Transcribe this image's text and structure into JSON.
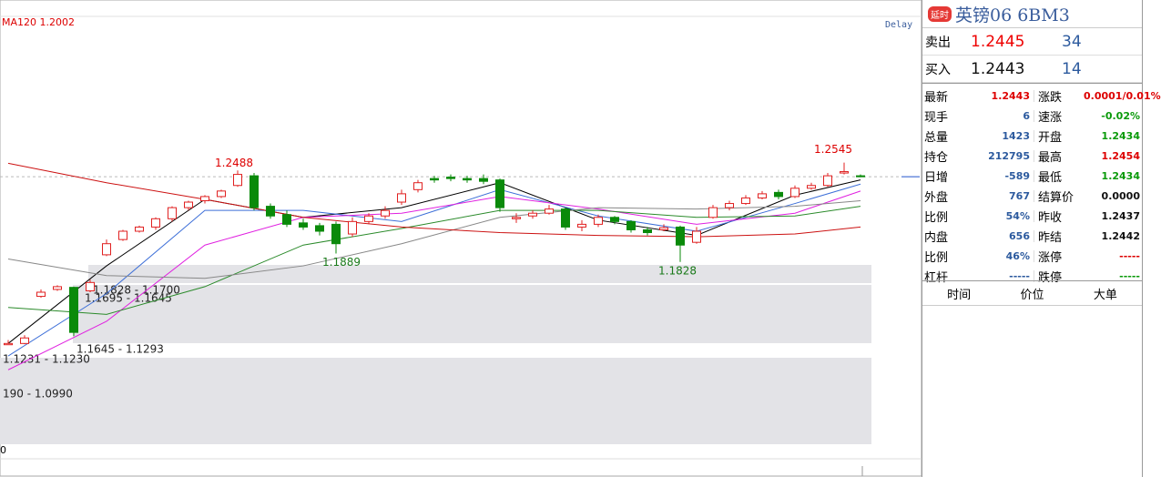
{
  "chart_data": {
    "type": "candlestick",
    "legend_text": "MA120 1.2002",
    "delay_text": "Delay",
    "corner_label": "0",
    "ylim": [
      1.05,
      1.36
    ],
    "open": [
      1.1231,
      1.124,
      1.158,
      1.163,
      1.1645,
      1.162,
      1.188,
      1.199,
      1.205,
      1.208,
      1.214,
      1.222,
      1.227,
      1.23,
      1.238,
      1.245,
      1.223,
      1.217,
      1.211,
      1.209,
      1.21,
      1.203,
      1.212,
      1.216,
      1.226,
      1.235,
      1.243,
      1.244,
      1.243,
      1.243,
      1.242,
      1.214,
      1.216,
      1.218,
      1.221,
      1.208,
      1.21,
      1.215,
      1.212,
      1.206,
      1.206,
      1.208,
      1.197,
      1.215,
      1.222,
      1.225,
      1.229,
      1.233,
      1.23,
      1.236,
      1.238,
      1.247,
      1.245
    ],
    "high": [
      1.1265,
      1.13,
      1.163,
      1.166,
      1.165,
      1.17,
      1.199,
      1.206,
      1.209,
      1.215,
      1.223,
      1.227,
      1.231,
      1.235,
      1.2488,
      1.247,
      1.225,
      1.22,
      1.214,
      1.211,
      1.212,
      1.215,
      1.218,
      1.223,
      1.235,
      1.242,
      1.245,
      1.246,
      1.245,
      1.246,
      1.243,
      1.218,
      1.22,
      1.224,
      1.222,
      1.213,
      1.217,
      1.216,
      1.213,
      1.208,
      1.21,
      1.209,
      1.208,
      1.224,
      1.227,
      1.231,
      1.234,
      1.235,
      1.238,
      1.24,
      1.247,
      1.2545,
      1.246
    ],
    "low": [
      1.123,
      1.1235,
      1.157,
      1.162,
      1.1293,
      1.161,
      1.187,
      1.198,
      1.204,
      1.206,
      1.212,
      1.22,
      1.225,
      1.229,
      1.237,
      1.22,
      1.214,
      1.208,
      1.206,
      1.202,
      1.1889,
      1.201,
      1.21,
      1.214,
      1.224,
      1.233,
      1.24,
      1.241,
      1.24,
      1.239,
      1.219,
      1.211,
      1.214,
      1.217,
      1.206,
      1.205,
      1.208,
      1.21,
      1.204,
      1.202,
      1.205,
      1.1828,
      1.196,
      1.214,
      1.22,
      1.224,
      1.228,
      1.228,
      1.229,
      1.235,
      1.237,
      1.246,
      1.244
    ],
    "close": [
      1.124,
      1.128,
      1.161,
      1.165,
      1.132,
      1.168,
      1.196,
      1.205,
      1.208,
      1.214,
      1.222,
      1.226,
      1.23,
      1.234,
      1.246,
      1.222,
      1.216,
      1.21,
      1.208,
      1.205,
      1.196,
      1.212,
      1.216,
      1.22,
      1.232,
      1.24,
      1.242,
      1.243,
      1.242,
      1.241,
      1.222,
      1.215,
      1.218,
      1.221,
      1.208,
      1.21,
      1.215,
      1.212,
      1.206,
      1.204,
      1.2075,
      1.195,
      1.205,
      1.222,
      1.225,
      1.229,
      1.232,
      1.23,
      1.236,
      1.238,
      1.245,
      1.248,
      1.2443
    ],
    "ma_x": [
      0,
      6,
      12,
      18,
      24,
      30,
      36,
      42,
      48,
      52
    ],
    "series": [
      {
        "color": "#000000",
        "values": [
          1.124,
          1.18,
          1.228,
          1.215,
          1.222,
          1.24,
          1.213,
          1.202,
          1.231,
          1.242
        ]
      },
      {
        "color": "#3d6fd8",
        "values": [
          1.115,
          1.16,
          1.22,
          1.22,
          1.212,
          1.235,
          1.216,
          1.205,
          1.225,
          1.239
        ]
      },
      {
        "color": "#e020e0",
        "values": [
          1.105,
          1.14,
          1.195,
          1.215,
          1.218,
          1.23,
          1.221,
          1.21,
          1.218,
          1.234
        ]
      },
      {
        "color": "#2a8a2a",
        "values": [
          1.15,
          1.145,
          1.165,
          1.195,
          1.207,
          1.22,
          1.22,
          1.215,
          1.216,
          1.223
        ]
      },
      {
        "color": "#888888",
        "values": [
          1.185,
          1.173,
          1.171,
          1.18,
          1.196,
          1.215,
          1.222,
          1.221,
          1.223,
          1.227
        ]
      },
      {
        "color": "#cc1111",
        "values": [
          1.254,
          1.24,
          1.228,
          1.215,
          1.208,
          1.204,
          1.202,
          1.201,
          1.203,
          1.208
        ]
      }
    ],
    "annotations": [
      1.2488,
      1.1889,
      1.2545,
      1.1828
    ],
    "zones": [
      "1.1828 - 1.1700",
      "1.1695 - 1.1645",
      "1.1645 - 1.1293",
      "1.1231 - 1.1230",
      "190 - 1.0990"
    ]
  },
  "panel": {
    "badge": "延时",
    "name": "英镑06  6BM3",
    "sell": [
      "卖出",
      "1.2445",
      "34"
    ],
    "buy": [
      "买入",
      "1.2443",
      "14"
    ],
    "rows": [
      [
        "最新",
        "1.2443",
        "涨跌",
        "0.0001/0.01%"
      ],
      [
        "现手",
        "6",
        "速涨",
        "-0.02%"
      ],
      [
        "总量",
        "1423",
        "开盘",
        "1.2434"
      ],
      [
        "持仓",
        "212795",
        "最高",
        "1.2454"
      ],
      [
        "日增",
        "-589",
        "最低",
        "1.2434"
      ],
      [
        "外盘",
        "767",
        "结算价",
        "0.0000"
      ],
      [
        "比例",
        "54%",
        "昨收",
        "1.2437"
      ],
      [
        "内盘",
        "656",
        "昨结",
        "1.2442"
      ],
      [
        "比例",
        "46%",
        "涨停",
        "-----"
      ],
      [
        "杠杆",
        "-----",
        "跌停",
        "-----"
      ]
    ],
    "footer": [
      "时间",
      "价位",
      "大单"
    ]
  }
}
